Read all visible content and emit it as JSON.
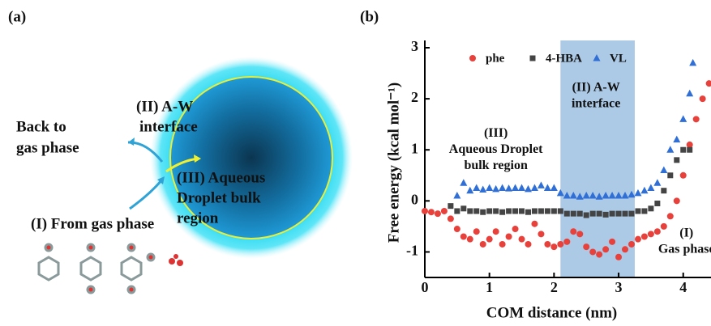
{
  "panel_labels": [
    "(a)",
    "(b)"
  ],
  "panel_a": {
    "interface_label": [
      "(II) A-W",
      "interface"
    ],
    "back_label": [
      "Back to",
      "gas phase"
    ],
    "bulk_label": [
      "(III) Aqueous",
      "Droplet bulk",
      "region"
    ],
    "from_label": "(I) From gas phase"
  },
  "chart_data": {
    "type": "scatter",
    "xlabel": "COM distance (nm)",
    "ylabel": "Free energy (kcal mol⁻¹)",
    "xlim": [
      0,
      4.43
    ],
    "ylim": [
      -1.5,
      3
    ],
    "xticks": [
      0,
      1,
      2,
      3,
      4
    ],
    "yticks": [
      -1,
      0,
      1,
      2,
      3
    ],
    "legend": "top",
    "shaded_band": {
      "x": [
        2.1,
        3.25
      ],
      "color": "#9dbfe0"
    },
    "annotations": [
      {
        "lines": [
          "(II) A-W",
          "interface"
        ],
        "x": 2.65,
        "y": 2.05
      },
      {
        "lines": [
          "(III)",
          "Aqueous Droplet",
          "bulk region"
        ],
        "x": 1.1,
        "y": 1.0
      },
      {
        "lines": [
          "(I)",
          "Gas phase"
        ],
        "x": 4.05,
        "y": -0.8
      }
    ],
    "series": [
      {
        "name": "phe",
        "color": "#e8403a",
        "marker": "circle",
        "x": [
          0.0,
          0.1,
          0.2,
          0.3,
          0.4,
          0.5,
          0.6,
          0.7,
          0.8,
          0.9,
          1.0,
          1.1,
          1.2,
          1.3,
          1.4,
          1.5,
          1.6,
          1.7,
          1.8,
          1.9,
          2.0,
          2.1,
          2.2,
          2.3,
          2.4,
          2.5,
          2.6,
          2.7,
          2.8,
          2.9,
          3.0,
          3.1,
          3.2,
          3.3,
          3.4,
          3.5,
          3.6,
          3.7,
          3.8,
          3.9,
          4.0,
          4.1,
          4.2,
          4.3,
          4.4
        ],
        "values": [
          -0.2,
          -0.22,
          -0.25,
          -0.2,
          -0.35,
          -0.55,
          -0.7,
          -0.75,
          -0.6,
          -0.85,
          -0.75,
          -0.6,
          -0.85,
          -0.7,
          -0.55,
          -0.75,
          -0.85,
          -0.45,
          -0.65,
          -0.85,
          -0.9,
          -0.85,
          -0.8,
          -0.6,
          -0.65,
          -0.9,
          -1.0,
          -1.05,
          -0.95,
          -0.8,
          -1.1,
          -0.95,
          -0.85,
          -0.75,
          -0.7,
          -0.65,
          -0.6,
          -0.5,
          -0.3,
          0.0,
          0.5,
          1.1,
          1.6,
          2.0,
          2.3
        ]
      },
      {
        "name": "4-HBA",
        "color": "#444444",
        "marker": "square",
        "x": [
          0.4,
          0.5,
          0.6,
          0.7,
          0.8,
          0.9,
          1.0,
          1.1,
          1.2,
          1.3,
          1.4,
          1.5,
          1.6,
          1.7,
          1.8,
          1.9,
          2.0,
          2.1,
          2.2,
          2.3,
          2.4,
          2.5,
          2.6,
          2.7,
          2.8,
          2.9,
          3.0,
          3.1,
          3.2,
          3.3,
          3.4,
          3.5,
          3.6,
          3.7,
          3.8,
          3.9,
          4.0,
          4.1
        ],
        "values": [
          -0.1,
          -0.2,
          -0.15,
          -0.2,
          -0.2,
          -0.22,
          -0.2,
          -0.2,
          -0.22,
          -0.2,
          -0.2,
          -0.2,
          -0.22,
          -0.2,
          -0.2,
          -0.2,
          -0.2,
          -0.2,
          -0.25,
          -0.25,
          -0.25,
          -0.28,
          -0.25,
          -0.25,
          -0.27,
          -0.25,
          -0.25,
          -0.25,
          -0.25,
          -0.2,
          -0.2,
          -0.15,
          -0.05,
          0.2,
          0.5,
          0.8,
          1.0,
          1.0
        ]
      },
      {
        "name": "VL",
        "color": "#2f6fd6",
        "marker": "triangle",
        "x": [
          0.5,
          0.6,
          0.7,
          0.8,
          0.9,
          1.0,
          1.1,
          1.2,
          1.3,
          1.4,
          1.5,
          1.6,
          1.7,
          1.8,
          1.9,
          2.0,
          2.1,
          2.2,
          2.3,
          2.4,
          2.5,
          2.6,
          2.7,
          2.8,
          2.9,
          3.0,
          3.1,
          3.2,
          3.3,
          3.4,
          3.5,
          3.6,
          3.7,
          3.8,
          3.9,
          4.0,
          4.1,
          4.15
        ],
        "values": [
          0.1,
          0.35,
          0.2,
          0.25,
          0.22,
          0.25,
          0.23,
          0.25,
          0.24,
          0.25,
          0.25,
          0.23,
          0.25,
          0.3,
          0.25,
          0.25,
          0.15,
          0.1,
          0.1,
          0.08,
          0.1,
          0.1,
          0.08,
          0.1,
          0.1,
          0.1,
          0.1,
          0.12,
          0.15,
          0.2,
          0.25,
          0.35,
          0.6,
          1.0,
          1.2,
          1.6,
          2.1,
          2.7
        ]
      }
    ]
  }
}
